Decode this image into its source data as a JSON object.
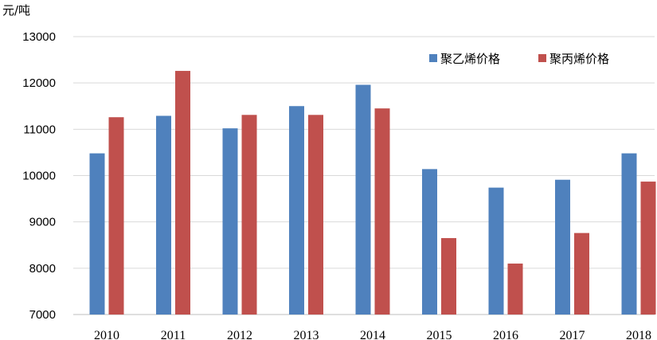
{
  "chart_data": {
    "type": "bar",
    "ylabel": "元/吨",
    "categories": [
      "2010",
      "2011",
      "2012",
      "2013",
      "2014",
      "2015",
      "2016",
      "2017",
      "2018"
    ],
    "series": [
      {
        "name": "聚乙烯价格",
        "color": "#4f81bd",
        "values": [
          10480,
          11290,
          11020,
          11500,
          11960,
          10140,
          9740,
          9910,
          10480
        ]
      },
      {
        "name": "聚丙烯价格",
        "color": "#c0504d",
        "values": [
          11260,
          12260,
          11310,
          11310,
          11450,
          8650,
          8100,
          8760,
          9870
        ]
      }
    ],
    "ylim": [
      7000,
      13000
    ],
    "yticks": [
      7000,
      8000,
      9000,
      10000,
      11000,
      12000,
      13000
    ],
    "grid": true,
    "legend": "top-right"
  }
}
